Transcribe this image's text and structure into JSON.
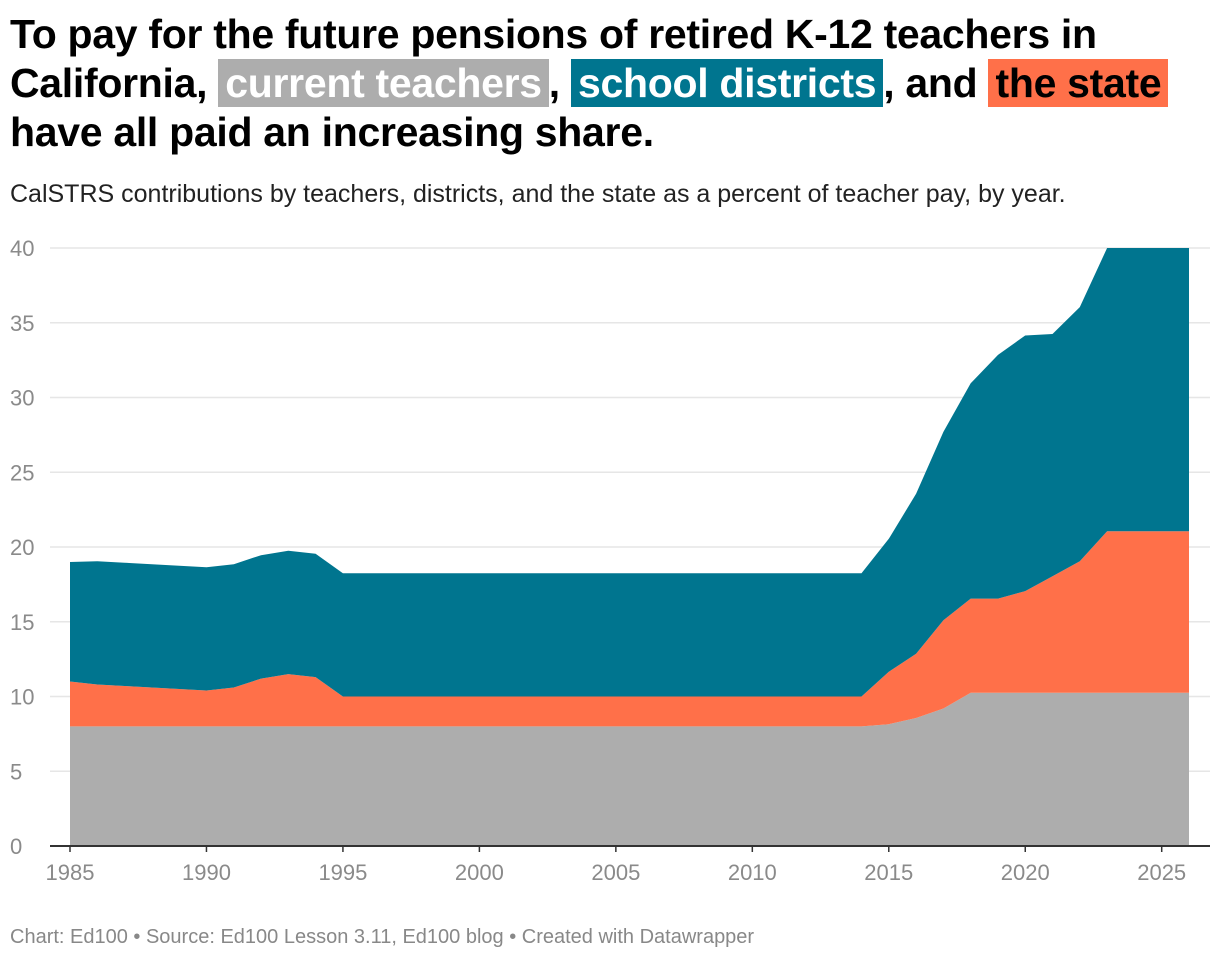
{
  "header": {
    "title_part1": "To pay for the future pensions of retired K-12 teachers in California,",
    "title_hl1": "current teachers",
    "title_sep1": ",",
    "title_hl2": "school districts",
    "title_sep2": ", and",
    "title_hl3": "the state",
    "title_part2": "have all paid an increasing share.",
    "subtitle": "CalSTRS contributions by teachers, districts, and the state as a percent of teacher pay, by year."
  },
  "footer": {
    "text": "Chart: Ed100 • Source: Ed100 Lesson 3.11, Ed100 blog • Created with Datawrapper"
  },
  "colors": {
    "teachers": "#adadad",
    "districts": "#00758f",
    "state": "#ff7049",
    "grid": "#e6e6e6",
    "axis": "#333333"
  },
  "chart_data": {
    "type": "area",
    "stacked": true,
    "x": [
      1985,
      1986,
      1987,
      1988,
      1989,
      1990,
      1991,
      1992,
      1993,
      1994,
      1995,
      1996,
      1997,
      1998,
      1999,
      2000,
      2001,
      2002,
      2003,
      2004,
      2005,
      2006,
      2007,
      2008,
      2009,
      2010,
      2011,
      2012,
      2013,
      2014,
      2015,
      2016,
      2017,
      2018,
      2019,
      2020,
      2021,
      2022,
      2023,
      2024,
      2025,
      2026
    ],
    "series": [
      {
        "key": "teachers",
        "values": [
          8,
          8,
          8,
          8,
          8,
          8,
          8,
          8,
          8,
          8,
          8,
          8,
          8,
          8,
          8,
          8,
          8,
          8,
          8,
          8,
          8,
          8,
          8,
          8,
          8,
          8,
          8,
          8,
          8,
          8,
          8.15,
          8.56,
          9.2,
          10.25,
          10.25,
          10.25,
          10.25,
          10.25,
          10.25,
          10.25,
          10.25,
          10.25
        ]
      },
      {
        "key": "state",
        "values": [
          3,
          2.8,
          2.7,
          2.6,
          2.5,
          2.4,
          2.6,
          3.2,
          3.5,
          3.3,
          2.0,
          2.0,
          2.0,
          2.0,
          2.0,
          2.0,
          2.0,
          2.0,
          2.0,
          2.0,
          2.0,
          2.0,
          2.0,
          2.0,
          2.0,
          2.0,
          2.0,
          2.0,
          2.0,
          2.0,
          3.5,
          4.3,
          5.9,
          6.3,
          6.3,
          6.8,
          7.8,
          8.8,
          10.8,
          10.8,
          10.8,
          10.8
        ]
      },
      {
        "key": "districts",
        "values": [
          8,
          8.25,
          8.25,
          8.25,
          8.25,
          8.25,
          8.25,
          8.25,
          8.25,
          8.25,
          8.25,
          8.25,
          8.25,
          8.25,
          8.25,
          8.25,
          8.25,
          8.25,
          8.25,
          8.25,
          8.25,
          8.25,
          8.25,
          8.25,
          8.25,
          8.25,
          8.25,
          8.25,
          8.25,
          8.25,
          8.9,
          10.7,
          12.6,
          14.4,
          16.3,
          17.1,
          16.2,
          17.0,
          19.1,
          19.1,
          19.1,
          19.1
        ]
      }
    ],
    "ylim": [
      0,
      40
    ],
    "y_ticks": [
      "0",
      "5",
      "10",
      "15",
      "20",
      "25",
      "30",
      "35",
      "40"
    ],
    "x_ticks": [
      "1985",
      "1990",
      "1995",
      "2000",
      "2005",
      "2010",
      "2015",
      "2020",
      "2025"
    ],
    "grid": true
  }
}
